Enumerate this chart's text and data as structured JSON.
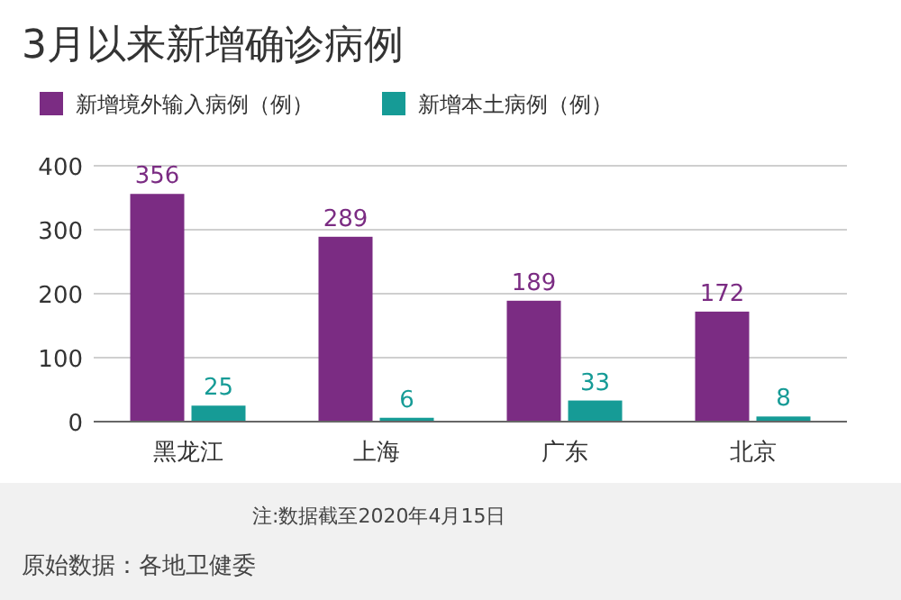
{
  "chart_data": {
    "type": "bar",
    "title": "3月以来新增确诊病例",
    "categories": [
      "黑龙江",
      "上海",
      "广东",
      "北京"
    ],
    "series": [
      {
        "name": "新增境外输入病例（例）",
        "color": "#7b2c83",
        "values": [
          356,
          289,
          189,
          172
        ]
      },
      {
        "name": "新增本土病例（例）",
        "color": "#169b96",
        "values": [
          25,
          6,
          33,
          8
        ]
      }
    ],
    "ylim": [
      0,
      400
    ],
    "yticks": [
      0,
      100,
      200,
      300,
      400
    ],
    "grid": "y",
    "legend": "top left",
    "data_labels": true,
    "annotations": [
      "注:数据截至2020年4月15日",
      "原始数据：各地卫健委"
    ]
  }
}
